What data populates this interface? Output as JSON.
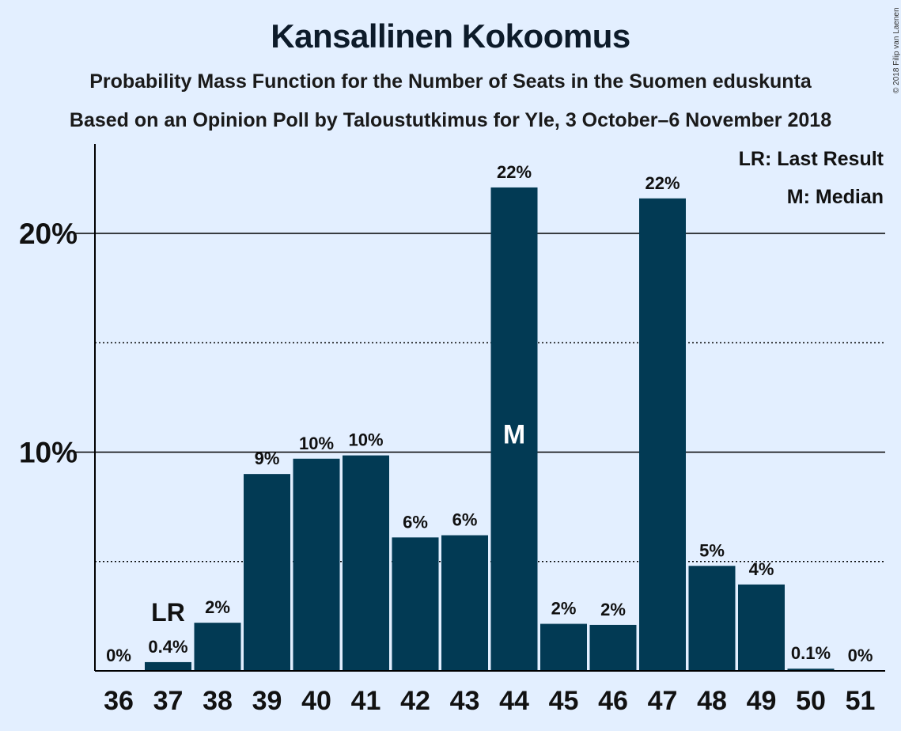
{
  "header": {
    "title": "Kansallinen Kokoomus",
    "subtitle": "Probability Mass Function for the Number of Seats in the Suomen eduskunta",
    "subtitle2": "Based on an Opinion Poll by Taloustutkimus for Yle, 3 October–6 November 2018",
    "copyright": "© 2018 Filip van Laenen"
  },
  "legend": {
    "lr": "LR: Last Result",
    "median": "M: Median"
  },
  "colors": {
    "background": "#e3efff",
    "bar": "#023a54"
  },
  "chart_data": {
    "type": "bar",
    "categories": [
      "36",
      "37",
      "38",
      "39",
      "40",
      "41",
      "42",
      "43",
      "44",
      "45",
      "46",
      "47",
      "48",
      "49",
      "50",
      "51"
    ],
    "values": [
      0,
      0.4,
      2.2,
      9.0,
      9.7,
      9.85,
      6.1,
      6.2,
      22.1,
      2.15,
      2.1,
      21.6,
      4.8,
      3.95,
      0.1,
      0
    ],
    "data_labels": [
      "0%",
      "0.4%",
      "2%",
      "9%",
      "10%",
      "10%",
      "6%",
      "6%",
      "22%",
      "2%",
      "2%",
      "22%",
      "5%",
      "4%",
      "0.1%",
      "0%"
    ],
    "y_ticks": [
      {
        "value": 10,
        "label": "10%"
      },
      {
        "value": 20,
        "label": "20%"
      }
    ],
    "y_minor_gridlines": [
      5,
      15
    ],
    "ylim": [
      0,
      24
    ],
    "last_result": {
      "category": "37",
      "label": "LR"
    },
    "median": {
      "category": "44",
      "label": "M"
    },
    "legend_position": "top-right"
  }
}
